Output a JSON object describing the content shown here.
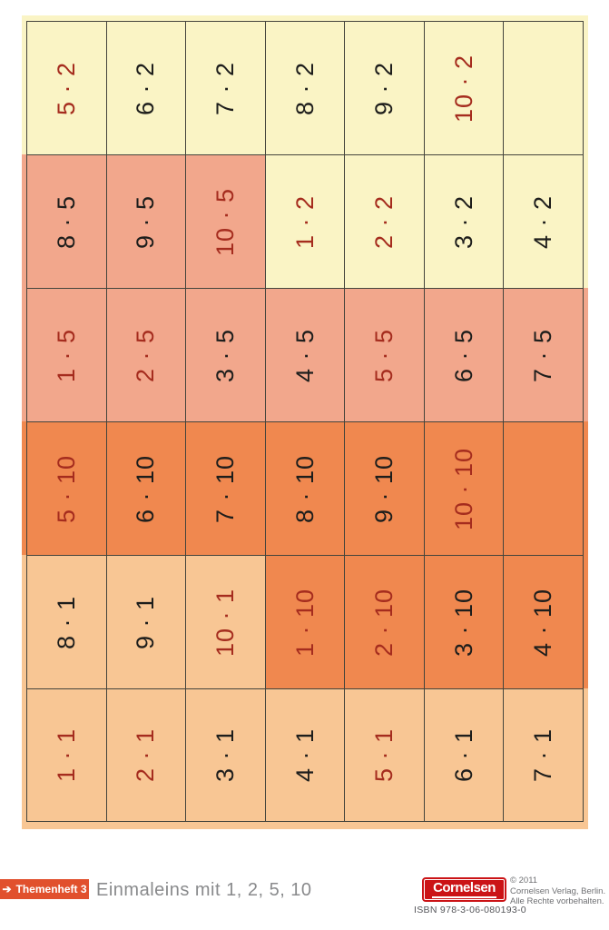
{
  "palette": {
    "yellow": "#faf4c5",
    "salmon": "#f2a78c",
    "orange": "#f0884f",
    "light_orange": "#f8c694",
    "red_text": "#a52c1e",
    "black_text": "#1e1e1c",
    "grid_line": "#44443c",
    "badge_bg": "#e1502d",
    "badge_text": "#ffffff",
    "title_text": "#898a8c",
    "logo_red": "#cb1316"
  },
  "grid": {
    "rows": [
      {
        "bleed_left": "yellow",
        "bleed_right": "yellow",
        "cells": [
          {
            "text": "5 · 2",
            "bg": "yellow",
            "ink": "red"
          },
          {
            "text": "6 · 2",
            "bg": "yellow",
            "ink": "black"
          },
          {
            "text": "7 · 2",
            "bg": "yellow",
            "ink": "black"
          },
          {
            "text": "8 · 2",
            "bg": "yellow",
            "ink": "black"
          },
          {
            "text": "9 · 2",
            "bg": "yellow",
            "ink": "black"
          },
          {
            "text": "10 · 2",
            "bg": "yellow",
            "ink": "red"
          },
          {
            "text": "",
            "bg": "yellow",
            "ink": "black"
          }
        ]
      },
      {
        "bleed_left": "salmon",
        "bleed_right": "yellow",
        "cells": [
          {
            "text": "8 · 5",
            "bg": "salmon",
            "ink": "black"
          },
          {
            "text": "9 · 5",
            "bg": "salmon",
            "ink": "black"
          },
          {
            "text": "10 · 5",
            "bg": "salmon",
            "ink": "red"
          },
          {
            "text": "1 · 2",
            "bg": "yellow",
            "ink": "red"
          },
          {
            "text": "2 · 2",
            "bg": "yellow",
            "ink": "red"
          },
          {
            "text": "3 · 2",
            "bg": "yellow",
            "ink": "black"
          },
          {
            "text": "4 · 2",
            "bg": "yellow",
            "ink": "black"
          }
        ]
      },
      {
        "bleed_left": "salmon",
        "bleed_right": "salmon",
        "cells": [
          {
            "text": "1 · 5",
            "bg": "salmon",
            "ink": "red"
          },
          {
            "text": "2 · 5",
            "bg": "salmon",
            "ink": "red"
          },
          {
            "text": "3 · 5",
            "bg": "salmon",
            "ink": "black"
          },
          {
            "text": "4 · 5",
            "bg": "salmon",
            "ink": "black"
          },
          {
            "text": "5 · 5",
            "bg": "salmon",
            "ink": "red"
          },
          {
            "text": "6 · 5",
            "bg": "salmon",
            "ink": "black"
          },
          {
            "text": "7 · 5",
            "bg": "salmon",
            "ink": "black"
          }
        ]
      },
      {
        "bleed_left": "orange",
        "bleed_right": "orange",
        "cells": [
          {
            "text": "5 · 10",
            "bg": "orange",
            "ink": "red"
          },
          {
            "text": "6 · 10",
            "bg": "orange",
            "ink": "black"
          },
          {
            "text": "7 · 10",
            "bg": "orange",
            "ink": "black"
          },
          {
            "text": "8 · 10",
            "bg": "orange",
            "ink": "black"
          },
          {
            "text": "9 · 10",
            "bg": "orange",
            "ink": "black"
          },
          {
            "text": "10 · 10",
            "bg": "orange",
            "ink": "red"
          },
          {
            "text": "",
            "bg": "orange",
            "ink": "black"
          }
        ]
      },
      {
        "bleed_left": "light_orange",
        "bleed_right": "orange",
        "cells": [
          {
            "text": "8 · 1",
            "bg": "light_orange",
            "ink": "black"
          },
          {
            "text": "9 · 1",
            "bg": "light_orange",
            "ink": "black"
          },
          {
            "text": "10 · 1",
            "bg": "light_orange",
            "ink": "red"
          },
          {
            "text": "1 · 10",
            "bg": "orange",
            "ink": "red"
          },
          {
            "text": "2 · 10",
            "bg": "orange",
            "ink": "red"
          },
          {
            "text": "3 · 10",
            "bg": "orange",
            "ink": "black"
          },
          {
            "text": "4 · 10",
            "bg": "orange",
            "ink": "black"
          }
        ]
      },
      {
        "bleed_left": "light_orange",
        "bleed_right": "light_orange",
        "cells": [
          {
            "text": "1 · 1",
            "bg": "light_orange",
            "ink": "red"
          },
          {
            "text": "2 · 1",
            "bg": "light_orange",
            "ink": "red"
          },
          {
            "text": "3 · 1",
            "bg": "light_orange",
            "ink": "black"
          },
          {
            "text": "4 · 1",
            "bg": "light_orange",
            "ink": "black"
          },
          {
            "text": "5 · 1",
            "bg": "light_orange",
            "ink": "red"
          },
          {
            "text": "6 · 1",
            "bg": "light_orange",
            "ink": "black"
          },
          {
            "text": "7 · 1",
            "bg": "light_orange",
            "ink": "black"
          }
        ]
      }
    ]
  },
  "footer": {
    "badge": {
      "arrow": "➔",
      "label": "Themenheft 3"
    },
    "title": "Einmaleins mit 1, 2, 5, 10",
    "logo_text": "Cornelsen",
    "isbn": "ISBN  978-3-06-080193-0",
    "copyright_lines": {
      "0": "© 2011",
      "1": "Cornelsen Verlag, Berlin.",
      "2": "Alle Rechte vorbehalten."
    }
  }
}
